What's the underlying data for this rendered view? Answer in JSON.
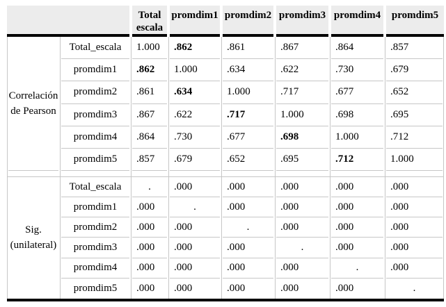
{
  "colors": {
    "header_bg": "#ececec",
    "grid_line": "#c6c6c6",
    "heavy_line": "#000000",
    "text": "#000000"
  },
  "table": {
    "col_headers": [
      [
        "Total",
        "escala"
      ],
      [
        "promdim1"
      ],
      [
        "promdim2"
      ],
      [
        "promdim3"
      ],
      [
        "promdim4"
      ],
      [
        "promdim5"
      ]
    ],
    "sections": [
      {
        "label_lines": [
          "Correlación",
          "de Pearson"
        ],
        "rows": [
          {
            "label": "Total_escala",
            "cells": [
              "1.000",
              ".862",
              ".861",
              ".867",
              ".864",
              ".857"
            ],
            "bold_col": 1
          },
          {
            "label": "promdim1",
            "cells": [
              ".862",
              "1.000",
              ".634",
              ".622",
              ".730",
              ".679"
            ],
            "bold_col": 0
          },
          {
            "label": "promdim2",
            "cells": [
              ".861",
              ".634",
              "1.000",
              ".717",
              ".677",
              ".652"
            ],
            "bold_col": 1
          },
          {
            "label": "promdim3",
            "cells": [
              ".867",
              ".622",
              ".717",
              "1.000",
              ".698",
              ".695"
            ],
            "bold_col": 2
          },
          {
            "label": "promdim4",
            "cells": [
              ".864",
              ".730",
              ".677",
              ".698",
              "1.000",
              ".712"
            ],
            "bold_col": 3
          },
          {
            "label": "promdim5",
            "cells": [
              ".857",
              ".679",
              ".652",
              ".695",
              ".712",
              "1.000"
            ],
            "bold_col": 4
          }
        ]
      },
      {
        "label_lines": [
          "Sig.",
          "(unilateral)"
        ],
        "rows": [
          {
            "label": "Total_escala",
            "cells": [
              ".",
              ".000",
              ".000",
              ".000",
              ".000",
              ".000"
            ]
          },
          {
            "label": "promdim1",
            "cells": [
              ".000",
              ".",
              ".000",
              ".000",
              ".000",
              ".000"
            ]
          },
          {
            "label": "promdim2",
            "cells": [
              ".000",
              ".000",
              ".",
              ".000",
              ".000",
              ".000"
            ]
          },
          {
            "label": "promdim3",
            "cells": [
              ".000",
              ".000",
              ".000",
              ".",
              ".000",
              ".000"
            ]
          },
          {
            "label": "promdim4",
            "cells": [
              ".000",
              ".000",
              ".000",
              ".000",
              ".",
              ".000"
            ]
          },
          {
            "label": "promdim5",
            "cells": [
              ".000",
              ".000",
              ".000",
              ".000",
              ".000",
              "."
            ]
          }
        ]
      }
    ]
  }
}
